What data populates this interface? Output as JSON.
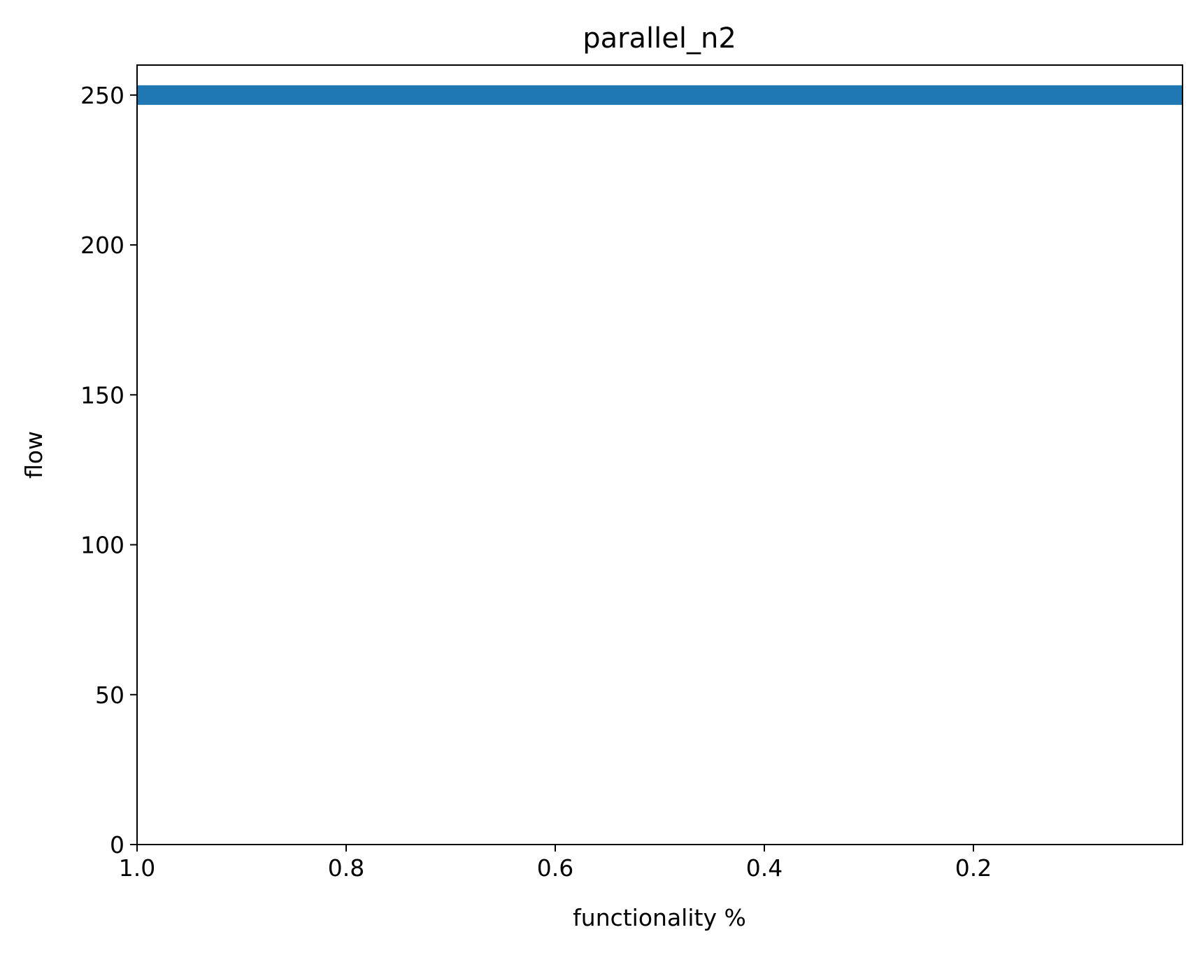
{
  "chart_data": {
    "type": "line",
    "title": "parallel_n2",
    "xlabel": "functionality %",
    "ylabel": "flow",
    "x_inverted": true,
    "xlim": [
      1.0,
      0.0
    ],
    "ylim": [
      0,
      260
    ],
    "x_ticks": [
      1.0,
      0.8,
      0.6,
      0.4,
      0.2
    ],
    "x_tick_labels": [
      "1.0",
      "0.8",
      "0.6",
      "0.4",
      "0.2"
    ],
    "y_ticks": [
      0,
      50,
      100,
      150,
      200,
      250
    ],
    "y_tick_labels": [
      "0",
      "50",
      "100",
      "150",
      "200",
      "250"
    ],
    "grid": false,
    "series": [
      {
        "color": "#1f77b4",
        "x": [
          1.0,
          0.0
        ],
        "y": [
          250,
          250
        ]
      }
    ]
  }
}
